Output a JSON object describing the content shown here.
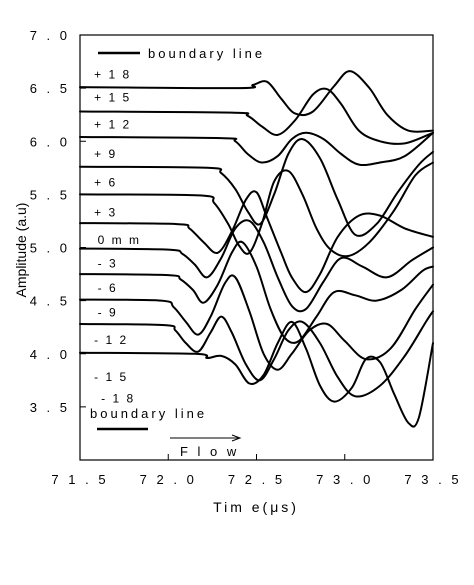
{
  "chart_data": {
    "type": "line",
    "title": "",
    "xlabel": "Tim e(μs)",
    "ylabel": "Amplitude (a.u)",
    "xlim": [
      71.5,
      73.5
    ],
    "ylim": [
      3.0,
      7.0
    ],
    "xticks": [
      71.5,
      72.0,
      72.5,
      73.0,
      73.5
    ],
    "xtick_labels": [
      "7 1 . 5",
      "7 2 . 0",
      "7 2 . 5",
      "7 3 . 0",
      "7 3 . 5"
    ],
    "yticks": [
      3.5,
      4.0,
      4.5,
      5.0,
      5.5,
      6.0,
      6.5,
      7.0
    ],
    "ytick_labels": [
      "3 . 5",
      "4 . 0",
      "4 . 5",
      "5 . 0",
      "5 . 5",
      "6 . 0",
      "6 . 5",
      "7 . 0"
    ],
    "grid": false,
    "legend": {
      "position": "top-left",
      "top_entry": "boundary line",
      "bottom_entry": "boundary line"
    },
    "annotations": [
      {
        "text": "Flow",
        "display": "F l o w",
        "arrow": "right",
        "x": 72.1,
        "y": 3.55
      }
    ],
    "series": [
      {
        "name": "+18",
        "label": "+ 1 8",
        "label_x": 71.58,
        "label_y": 6.63,
        "points": [
          [
            71.5,
            6.51
          ],
          [
            72.4,
            6.5
          ],
          [
            72.48,
            6.53
          ],
          [
            72.56,
            6.56
          ],
          [
            72.64,
            6.4
          ],
          [
            72.72,
            6.26
          ],
          [
            72.82,
            6.28
          ],
          [
            72.94,
            6.52
          ],
          [
            73.03,
            6.66
          ],
          [
            73.14,
            6.5
          ],
          [
            73.24,
            6.25
          ],
          [
            73.36,
            6.1
          ],
          [
            73.5,
            6.1
          ]
        ]
      },
      {
        "name": "+15",
        "label": "+ 1 5",
        "label_x": 71.58,
        "label_y": 6.41,
        "points": [
          [
            71.5,
            6.28
          ],
          [
            72.36,
            6.27
          ],
          [
            72.45,
            6.24
          ],
          [
            72.53,
            6.14
          ],
          [
            72.62,
            6.06
          ],
          [
            72.72,
            6.2
          ],
          [
            72.82,
            6.44
          ],
          [
            72.9,
            6.49
          ],
          [
            72.98,
            6.35
          ],
          [
            73.08,
            6.1
          ],
          [
            73.2,
            6.0
          ],
          [
            73.34,
            5.98
          ],
          [
            73.5,
            6.08
          ]
        ]
      },
      {
        "name": "+12",
        "label": "+ 1 2",
        "label_x": 71.58,
        "label_y": 6.16,
        "points": [
          [
            71.5,
            6.04
          ],
          [
            72.3,
            6.03
          ],
          [
            72.38,
            6.0
          ],
          [
            72.45,
            5.88
          ],
          [
            72.53,
            5.8
          ],
          [
            72.62,
            5.86
          ],
          [
            72.7,
            6.02
          ],
          [
            72.78,
            6.08
          ],
          [
            72.88,
            6.02
          ],
          [
            72.98,
            5.88
          ],
          [
            73.08,
            5.78
          ],
          [
            73.2,
            5.8
          ],
          [
            73.34,
            5.86
          ],
          [
            73.5,
            6.08
          ]
        ]
      },
      {
        "name": "+9",
        "label": "+  9",
        "label_x": 71.58,
        "label_y": 5.88,
        "points": [
          [
            71.5,
            5.76
          ],
          [
            72.22,
            5.75
          ],
          [
            72.3,
            5.7
          ],
          [
            72.38,
            5.55
          ],
          [
            72.45,
            5.34
          ],
          [
            72.52,
            5.22
          ],
          [
            72.6,
            5.5
          ],
          [
            72.68,
            5.88
          ],
          [
            72.76,
            6.02
          ],
          [
            72.86,
            5.84
          ],
          [
            72.96,
            5.45
          ],
          [
            73.06,
            5.12
          ],
          [
            73.18,
            5.22
          ],
          [
            73.3,
            5.52
          ],
          [
            73.42,
            5.78
          ],
          [
            73.5,
            5.9
          ]
        ]
      },
      {
        "name": "+6",
        "label": "+  6",
        "label_x": 71.58,
        "label_y": 5.61,
        "points": [
          [
            71.5,
            5.5
          ],
          [
            72.18,
            5.49
          ],
          [
            72.26,
            5.42
          ],
          [
            72.34,
            5.22
          ],
          [
            72.4,
            5.02
          ],
          [
            72.46,
            4.95
          ],
          [
            72.53,
            5.22
          ],
          [
            72.6,
            5.62
          ],
          [
            72.68,
            5.72
          ],
          [
            72.76,
            5.5
          ],
          [
            72.84,
            5.18
          ],
          [
            72.92,
            4.98
          ],
          [
            73.02,
            4.92
          ],
          [
            73.14,
            5.05
          ],
          [
            73.28,
            5.35
          ],
          [
            73.4,
            5.68
          ],
          [
            73.5,
            5.8
          ]
        ]
      },
      {
        "name": "+3",
        "label": "+  3",
        "label_x": 71.58,
        "label_y": 5.33,
        "points": [
          [
            71.5,
            5.23
          ],
          [
            72.05,
            5.22
          ],
          [
            72.12,
            5.18
          ],
          [
            72.2,
            5.05
          ],
          [
            72.28,
            4.95
          ],
          [
            72.36,
            5.15
          ],
          [
            72.44,
            5.45
          ],
          [
            72.5,
            5.52
          ],
          [
            72.56,
            5.28
          ],
          [
            72.64,
            4.95
          ],
          [
            72.7,
            4.72
          ],
          [
            72.78,
            4.58
          ],
          [
            72.86,
            4.75
          ],
          [
            72.96,
            5.1
          ],
          [
            73.08,
            5.3
          ],
          [
            73.2,
            5.3
          ],
          [
            73.34,
            5.18
          ],
          [
            73.5,
            5.1
          ]
        ]
      },
      {
        "name": "0mm",
        "label": "0  m m",
        "label_x": 71.6,
        "label_y": 5.07,
        "points": [
          [
            71.5,
            4.99
          ],
          [
            72.0,
            4.98
          ],
          [
            72.08,
            4.94
          ],
          [
            72.15,
            4.84
          ],
          [
            72.22,
            4.72
          ],
          [
            72.3,
            4.9
          ],
          [
            72.38,
            5.18
          ],
          [
            72.46,
            5.25
          ],
          [
            72.54,
            5.05
          ],
          [
            72.62,
            4.72
          ],
          [
            72.7,
            4.45
          ],
          [
            72.78,
            4.42
          ],
          [
            72.88,
            4.68
          ],
          [
            72.98,
            4.9
          ],
          [
            73.1,
            4.82
          ],
          [
            73.24,
            4.72
          ],
          [
            73.38,
            4.88
          ],
          [
            73.5,
            5.0
          ]
        ]
      },
      {
        "name": "-3",
        "label": "-  3",
        "label_x": 71.6,
        "label_y": 4.85,
        "points": [
          [
            71.5,
            4.75
          ],
          [
            72.0,
            4.74
          ],
          [
            72.07,
            4.7
          ],
          [
            72.14,
            4.6
          ],
          [
            72.2,
            4.48
          ],
          [
            72.28,
            4.65
          ],
          [
            72.36,
            4.95
          ],
          [
            72.42,
            5.05
          ],
          [
            72.5,
            4.82
          ],
          [
            72.58,
            4.42
          ],
          [
            72.66,
            4.15
          ],
          [
            72.74,
            4.12
          ],
          [
            72.84,
            4.35
          ],
          [
            72.94,
            4.58
          ],
          [
            73.06,
            4.55
          ],
          [
            73.18,
            4.5
          ],
          [
            73.32,
            4.6
          ],
          [
            73.44,
            4.78
          ],
          [
            73.5,
            4.82
          ]
        ]
      },
      {
        "name": "-6",
        "label": "-  6",
        "label_x": 71.6,
        "label_y": 4.62,
        "points": [
          [
            71.5,
            4.51
          ],
          [
            71.96,
            4.5
          ],
          [
            72.03,
            4.44
          ],
          [
            72.1,
            4.3
          ],
          [
            72.17,
            4.18
          ],
          [
            72.24,
            4.35
          ],
          [
            72.32,
            4.66
          ],
          [
            72.38,
            4.72
          ],
          [
            72.46,
            4.4
          ],
          [
            72.54,
            4.0
          ],
          [
            72.62,
            3.85
          ],
          [
            72.7,
            4.0
          ],
          [
            72.8,
            4.22
          ],
          [
            72.9,
            4.28
          ],
          [
            73.0,
            4.12
          ],
          [
            73.12,
            3.95
          ],
          [
            73.26,
            4.05
          ],
          [
            73.4,
            4.42
          ],
          [
            73.5,
            4.65
          ]
        ]
      },
      {
        "name": "-9",
        "label": "-  9",
        "label_x": 71.6,
        "label_y": 4.39,
        "points": [
          [
            71.5,
            4.28
          ],
          [
            71.98,
            4.27
          ],
          [
            72.04,
            4.22
          ],
          [
            72.1,
            4.1
          ],
          [
            72.17,
            4.02
          ],
          [
            72.24,
            4.2
          ],
          [
            72.3,
            4.35
          ],
          [
            72.36,
            4.2
          ],
          [
            72.44,
            3.9
          ],
          [
            72.52,
            3.75
          ],
          [
            72.6,
            3.95
          ],
          [
            72.68,
            4.22
          ],
          [
            72.76,
            4.3
          ],
          [
            72.86,
            4.1
          ],
          [
            72.96,
            3.78
          ],
          [
            73.06,
            3.6
          ],
          [
            73.2,
            3.7
          ],
          [
            73.34,
            3.98
          ],
          [
            73.46,
            4.3
          ],
          [
            73.5,
            4.4
          ]
        ]
      },
      {
        "name": "-12",
        "label": "- 1 2",
        "label_x": 71.58,
        "label_y": 4.13,
        "points": [
          [
            71.5,
            4.01
          ],
          [
            72.15,
            4.0
          ],
          [
            72.22,
            3.96
          ],
          [
            72.3,
            3.98
          ],
          [
            72.38,
            3.9
          ],
          [
            72.46,
            3.72
          ],
          [
            72.54,
            3.8
          ],
          [
            72.62,
            4.1
          ],
          [
            72.7,
            4.3
          ],
          [
            72.78,
            4.05
          ],
          [
            72.86,
            3.7
          ],
          [
            72.94,
            3.55
          ],
          [
            73.04,
            3.68
          ],
          [
            73.12,
            3.95
          ],
          [
            73.2,
            3.92
          ],
          [
            73.28,
            3.62
          ],
          [
            73.36,
            3.35
          ],
          [
            73.42,
            3.4
          ],
          [
            73.5,
            4.1
          ]
        ]
      }
    ],
    "extra_labels": [
      {
        "label": "- 1 5",
        "x": 71.58,
        "y": 3.78
      },
      {
        "label": "- 1 8",
        "x": 71.62,
        "y": 3.58
      }
    ]
  }
}
